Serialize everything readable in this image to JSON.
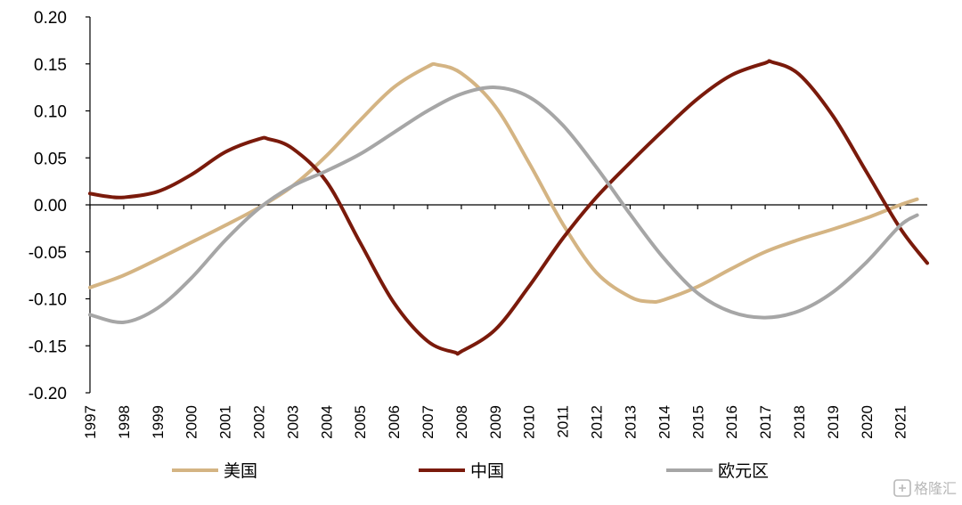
{
  "chart_data": {
    "type": "line",
    "title": "",
    "xlabel": "",
    "ylabel": "",
    "ylim": [
      -0.2,
      0.2
    ],
    "yticks": [
      "0.20",
      "0.15",
      "0.10",
      "0.05",
      "0.00",
      "-0.05",
      "-0.10",
      "-0.15",
      "-0.20"
    ],
    "x_ticks": [
      "1997",
      "1998",
      "1999",
      "2000",
      "2001",
      "2002",
      "2003",
      "2004",
      "2005",
      "2006",
      "2007",
      "2008",
      "2009",
      "2010",
      "2011",
      "2012",
      "2013",
      "2014",
      "2015",
      "2016",
      "2017",
      "2018",
      "2019",
      "2020",
      "2021"
    ],
    "legend_position": "bottom",
    "series": [
      {
        "name": "美国",
        "color": "#d4b483",
        "points": [
          [
            1997.0,
            -0.088
          ],
          [
            1998.0,
            -0.075
          ],
          [
            1999.0,
            -0.058
          ],
          [
            2000.0,
            -0.04
          ],
          [
            2001.0,
            -0.022
          ],
          [
            2002.0,
            -0.003
          ],
          [
            2003.0,
            0.02
          ],
          [
            2004.0,
            0.052
          ],
          [
            2005.0,
            0.09
          ],
          [
            2006.0,
            0.125
          ],
          [
            2007.0,
            0.147
          ],
          [
            2007.3,
            0.149
          ],
          [
            2008.0,
            0.14
          ],
          [
            2009.0,
            0.105
          ],
          [
            2010.0,
            0.045
          ],
          [
            2011.0,
            -0.02
          ],
          [
            2012.0,
            -0.072
          ],
          [
            2013.0,
            -0.098
          ],
          [
            2013.6,
            -0.103
          ],
          [
            2014.0,
            -0.101
          ],
          [
            2015.0,
            -0.087
          ],
          [
            2016.0,
            -0.068
          ],
          [
            2017.0,
            -0.05
          ],
          [
            2018.0,
            -0.037
          ],
          [
            2019.0,
            -0.026
          ],
          [
            2020.0,
            -0.014
          ],
          [
            2021.0,
            0.0
          ],
          [
            2021.5,
            0.006
          ]
        ]
      },
      {
        "name": "中国",
        "color": "#7a1a0b",
        "points": [
          [
            1997.0,
            0.012
          ],
          [
            1997.5,
            0.009
          ],
          [
            1998.0,
            0.008
          ],
          [
            1999.0,
            0.014
          ],
          [
            2000.0,
            0.032
          ],
          [
            2001.0,
            0.056
          ],
          [
            2002.0,
            0.07
          ],
          [
            2002.3,
            0.07
          ],
          [
            2003.0,
            0.06
          ],
          [
            2004.0,
            0.025
          ],
          [
            2005.0,
            -0.04
          ],
          [
            2006.0,
            -0.104
          ],
          [
            2007.0,
            -0.145
          ],
          [
            2007.8,
            -0.157
          ],
          [
            2008.0,
            -0.156
          ],
          [
            2009.0,
            -0.133
          ],
          [
            2010.0,
            -0.087
          ],
          [
            2011.0,
            -0.036
          ],
          [
            2012.0,
            0.008
          ],
          [
            2013.0,
            0.045
          ],
          [
            2014.0,
            0.08
          ],
          [
            2015.0,
            0.113
          ],
          [
            2016.0,
            0.138
          ],
          [
            2017.0,
            0.151
          ],
          [
            2017.2,
            0.152
          ],
          [
            2018.0,
            0.139
          ],
          [
            2019.0,
            0.095
          ],
          [
            2020.0,
            0.035
          ],
          [
            2021.0,
            -0.025
          ],
          [
            2021.8,
            -0.062
          ]
        ]
      },
      {
        "name": "欧元区",
        "color": "#a6a6a6",
        "points": [
          [
            1997.0,
            -0.117
          ],
          [
            1998.0,
            -0.125
          ],
          [
            1999.0,
            -0.11
          ],
          [
            2000.0,
            -0.078
          ],
          [
            2001.0,
            -0.038
          ],
          [
            2002.0,
            -0.004
          ],
          [
            2003.0,
            0.02
          ],
          [
            2004.0,
            0.036
          ],
          [
            2005.0,
            0.054
          ],
          [
            2006.0,
            0.077
          ],
          [
            2007.0,
            0.1
          ],
          [
            2008.0,
            0.118
          ],
          [
            2009.0,
            0.125
          ],
          [
            2010.0,
            0.115
          ],
          [
            2011.0,
            0.085
          ],
          [
            2012.0,
            0.04
          ],
          [
            2013.0,
            -0.01
          ],
          [
            2014.0,
            -0.057
          ],
          [
            2015.0,
            -0.094
          ],
          [
            2016.0,
            -0.114
          ],
          [
            2017.0,
            -0.12
          ],
          [
            2018.0,
            -0.113
          ],
          [
            2019.0,
            -0.093
          ],
          [
            2020.0,
            -0.061
          ],
          [
            2021.0,
            -0.022
          ],
          [
            2021.5,
            -0.011
          ]
        ]
      }
    ]
  },
  "watermark": "格隆汇"
}
